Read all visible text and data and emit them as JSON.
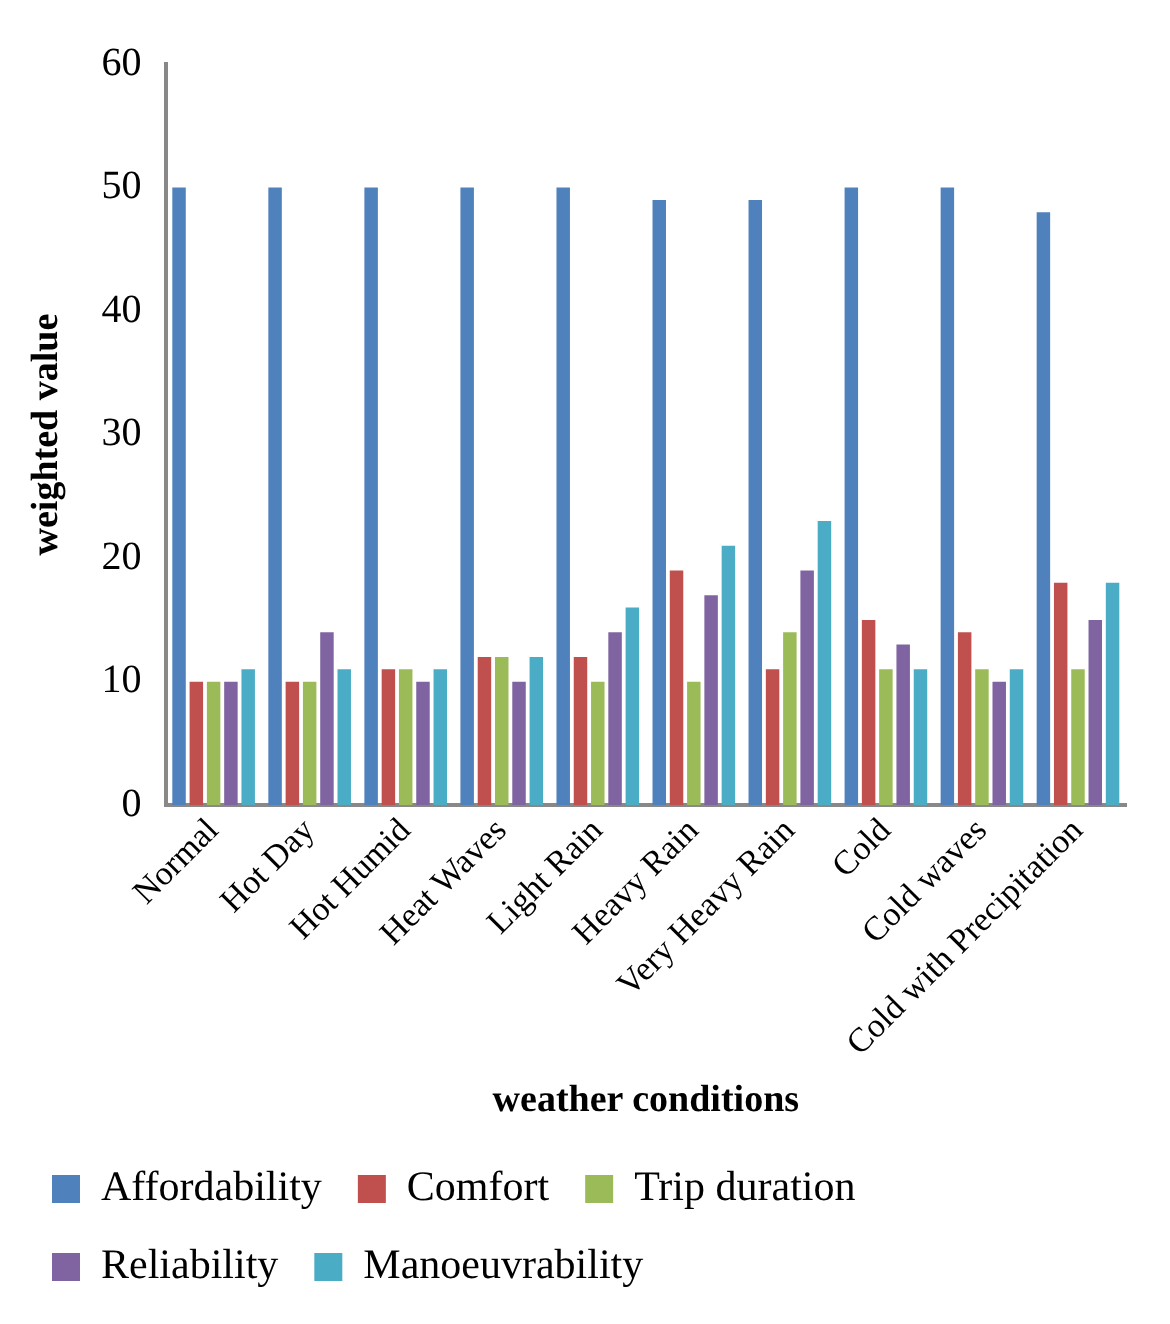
{
  "chart_data": {
    "type": "bar",
    "xlabel": "weather conditions",
    "ylabel": "weighted value",
    "categories": [
      "Normal",
      "Hot Day",
      "Hot Humid",
      "Heat Waves",
      "Light Rain",
      "Heavy Rain",
      "Very Heavy Rain",
      "Cold",
      "Cold waves",
      "Cold with Precipitation"
    ],
    "series": [
      {
        "name": "Affordability",
        "color": "#4f81bd",
        "values": [
          50,
          50,
          50,
          50,
          50,
          49,
          49,
          50,
          50,
          48
        ]
      },
      {
        "name": "Comfort",
        "color": "#c0504d",
        "values": [
          10,
          10,
          11,
          12,
          12,
          19,
          11,
          15,
          14,
          18
        ]
      },
      {
        "name": "Trip duration",
        "color": "#9bbb59",
        "values": [
          10,
          10,
          11,
          12,
          10,
          10,
          14,
          11,
          11,
          11
        ]
      },
      {
        "name": "Reliability",
        "color": "#8064a2",
        "values": [
          10,
          14,
          10,
          10,
          14,
          17,
          19,
          13,
          10,
          15
        ]
      },
      {
        "name": "Manoeuvrability",
        "color": "#4bacc6",
        "values": [
          11,
          11,
          11,
          12,
          16,
          21,
          23,
          11,
          11,
          18
        ]
      }
    ],
    "ylim": [
      0,
      60
    ],
    "yticks": [
      0,
      10,
      20,
      30,
      40,
      50,
      60
    ],
    "grid": false,
    "legend": "bottom"
  }
}
